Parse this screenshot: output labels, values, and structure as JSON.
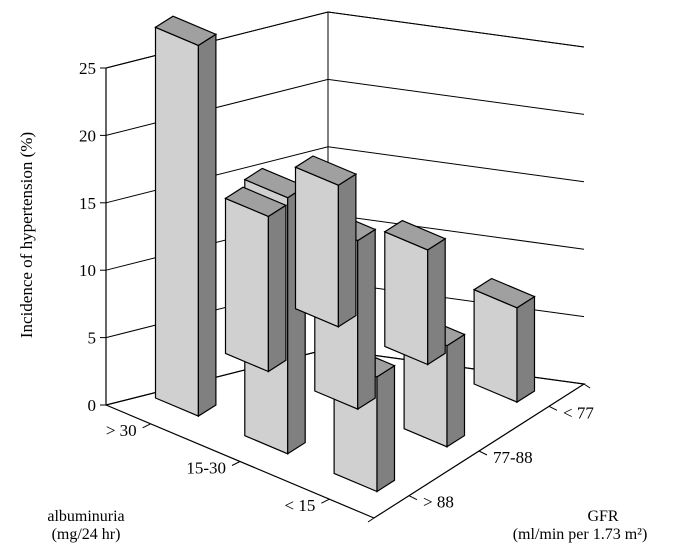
{
  "chart_data": {
    "type": "bar",
    "subtype": "3d-grouped",
    "title": "",
    "zlabel": "Incidence of hypertension (%)",
    "zlim": [
      0,
      25
    ],
    "zticks": [
      "0",
      "5",
      "10",
      "15",
      "20",
      "25"
    ],
    "grid": true,
    "x_axis": {
      "label_line1": "albuminuria",
      "label_line2": "(mg/24 hr)",
      "categories": [
        "> 30",
        "15-30",
        "< 15"
      ]
    },
    "y_axis": {
      "label_line1": "GFR",
      "label_line2": "(ml/min per 1.73 m²)",
      "categories": [
        "> 88",
        "77-88",
        "< 77"
      ]
    },
    "series": [
      {
        "albuminuria": "> 30",
        "values": [
          10.5,
          11.5,
          27.5
        ]
      },
      {
        "albuminuria": "15-30",
        "values": [
          8.5,
          12.5,
          19.0
        ]
      },
      {
        "albuminuria": "< 15",
        "values": [
          7.0,
          7.5,
          8.5
        ]
      }
    ],
    "colors": {
      "front": "#d0d0d0",
      "side": "#808080",
      "top": "#a0a0a0",
      "edge": "#000000"
    }
  }
}
